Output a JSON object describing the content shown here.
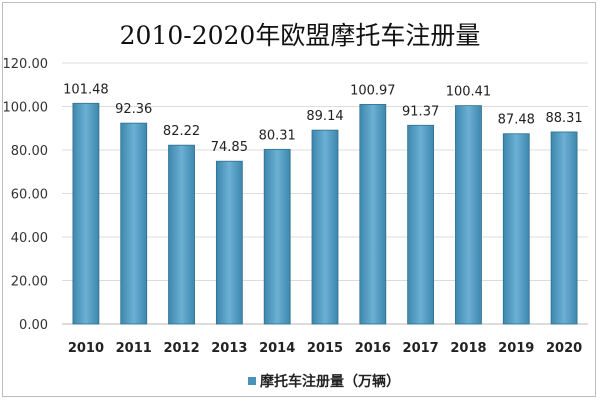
{
  "chart_data": {
    "type": "bar",
    "title": "2010-2020年欧盟摩托车注册量",
    "categories": [
      "2010",
      "2011",
      "2012",
      "2013",
      "2014",
      "2015",
      "2016",
      "2017",
      "2018",
      "2019",
      "2020"
    ],
    "series": [
      {
        "name": "摩托车注册量（万辆）",
        "values": [
          101.48,
          92.36,
          82.22,
          74.85,
          80.31,
          89.14,
          100.97,
          91.37,
          100.41,
          87.48,
          88.31
        ]
      }
    ],
    "data_labels": [
      "101.48",
      "92.36",
      "82.22",
      "74.85",
      "80.31",
      "89.14",
      "100.97",
      "91.37",
      "100.41",
      "87.48",
      "88.31"
    ],
    "yticks": [
      "0.00",
      "20.00",
      "40.00",
      "60.00",
      "80.00",
      "100.00",
      "120.00"
    ],
    "ylim": [
      0,
      120
    ],
    "xlabel": "",
    "ylabel": "",
    "grid": true,
    "legend": "bottom",
    "bar_color": "#4a93b8"
  }
}
